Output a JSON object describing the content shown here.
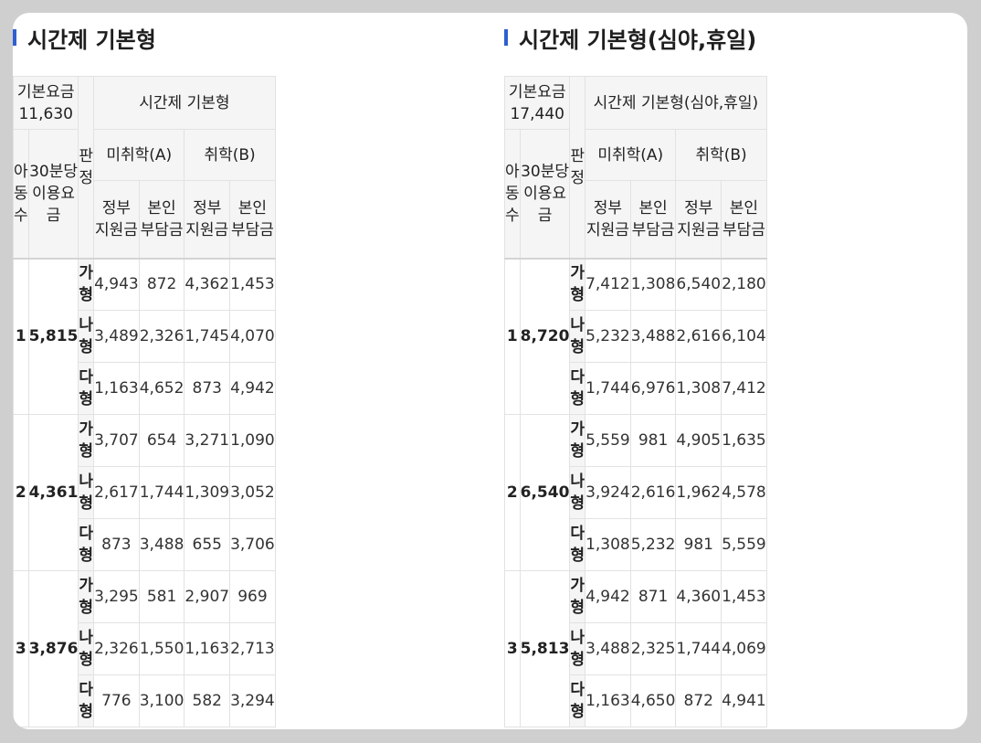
{
  "panels": [
    {
      "title": "시간제 기본형",
      "base_fee": "기본요금 11,630",
      "group_header": "시간제 기본형",
      "col_children": "아동수",
      "col_fee_line1": "30분당",
      "col_fee_line2": "이용요금",
      "col_class": "판정",
      "col_a": "미취학(A)",
      "col_b": "취학(B)",
      "col_gov_line1": "정부",
      "col_gov_line2": "지원금",
      "col_self_line1": "본인",
      "col_self_line2": "부담금",
      "groups": [
        {
          "children": "1",
          "fee": "5,815",
          "rows": [
            {
              "cls": "가형",
              "a_gov": "4,943",
              "a_self": "872",
              "b_gov": "4,362",
              "b_self": "1,453"
            },
            {
              "cls": "나형",
              "a_gov": "3,489",
              "a_self": "2,326",
              "b_gov": "1,745",
              "b_self": "4,070"
            },
            {
              "cls": "다형",
              "a_gov": "1,163",
              "a_self": "4,652",
              "b_gov": "873",
              "b_self": "4,942"
            }
          ]
        },
        {
          "children": "2",
          "fee": "4,361",
          "rows": [
            {
              "cls": "가형",
              "a_gov": "3,707",
              "a_self": "654",
              "b_gov": "3,271",
              "b_self": "1,090"
            },
            {
              "cls": "나형",
              "a_gov": "2,617",
              "a_self": "1,744",
              "b_gov": "1,309",
              "b_self": "3,052"
            },
            {
              "cls": "다형",
              "a_gov": "873",
              "a_self": "3,488",
              "b_gov": "655",
              "b_self": "3,706"
            }
          ]
        },
        {
          "children": "3",
          "fee": "3,876",
          "rows": [
            {
              "cls": "가형",
              "a_gov": "3,295",
              "a_self": "581",
              "b_gov": "2,907",
              "b_self": "969"
            },
            {
              "cls": "나형",
              "a_gov": "2,326",
              "a_self": "1,550",
              "b_gov": "1,163",
              "b_self": "2,713"
            },
            {
              "cls": "다형",
              "a_gov": "776",
              "a_self": "3,100",
              "b_gov": "582",
              "b_self": "3,294"
            }
          ]
        }
      ]
    },
    {
      "title": "시간제 기본형(심야,휴일)",
      "base_fee": "기본요금 17,440",
      "group_header": "시간제 기본형(심야,휴일)",
      "col_children": "아동수",
      "col_fee_line1": "30분당",
      "col_fee_line2": "이용요금",
      "col_class": "판정",
      "col_a": "미취학(A)",
      "col_b": "취학(B)",
      "col_gov_line1": "정부",
      "col_gov_line2": "지원금",
      "col_self_line1": "본인",
      "col_self_line2": "부담금",
      "groups": [
        {
          "children": "1",
          "fee": "8,720",
          "rows": [
            {
              "cls": "가형",
              "a_gov": "7,412",
              "a_self": "1,308",
              "b_gov": "6,540",
              "b_self": "2,180"
            },
            {
              "cls": "나형",
              "a_gov": "5,232",
              "a_self": "3,488",
              "b_gov": "2,616",
              "b_self": "6,104"
            },
            {
              "cls": "다형",
              "a_gov": "1,744",
              "a_self": "6,976",
              "b_gov": "1,308",
              "b_self": "7,412"
            }
          ]
        },
        {
          "children": "2",
          "fee": "6,540",
          "rows": [
            {
              "cls": "가형",
              "a_gov": "5,559",
              "a_self": "981",
              "b_gov": "4,905",
              "b_self": "1,635"
            },
            {
              "cls": "나형",
              "a_gov": "3,924",
              "a_self": "2,616",
              "b_gov": "1,962",
              "b_self": "4,578"
            },
            {
              "cls": "다형",
              "a_gov": "1,308",
              "a_self": "5,232",
              "b_gov": "981",
              "b_self": "5,559"
            }
          ]
        },
        {
          "children": "3",
          "fee": "5,813",
          "rows": [
            {
              "cls": "가형",
              "a_gov": "4,942",
              "a_self": "871",
              "b_gov": "4,360",
              "b_self": "1,453"
            },
            {
              "cls": "나형",
              "a_gov": "3,488",
              "a_self": "2,325",
              "b_gov": "1,744",
              "b_self": "4,069"
            },
            {
              "cls": "다형",
              "a_gov": "1,163",
              "a_self": "4,650",
              "b_gov": "872",
              "b_self": "4,941"
            }
          ]
        }
      ]
    }
  ]
}
